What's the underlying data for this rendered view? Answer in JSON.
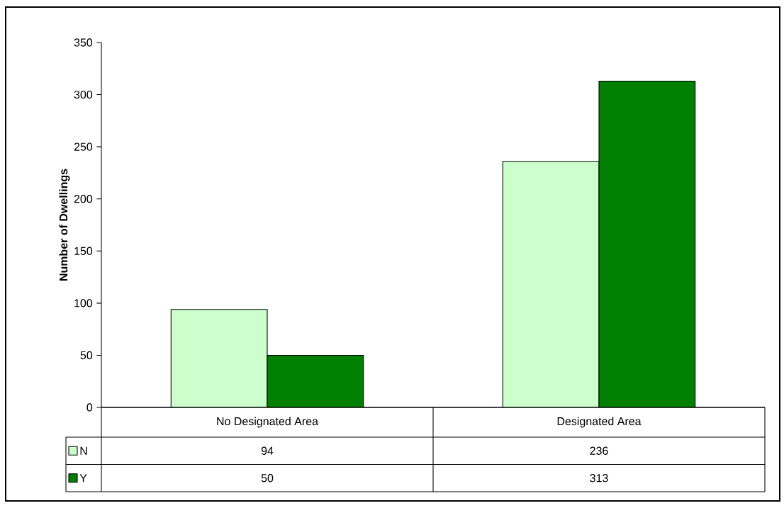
{
  "chart_data": {
    "type": "bar",
    "ylabel": "Number of Dwellings",
    "categories": [
      "No Designated Area",
      "Designated Area"
    ],
    "series": [
      {
        "name": "N",
        "color": "#ccffcc",
        "values": [
          94,
          236
        ]
      },
      {
        "name": "Y",
        "color": "#008000",
        "values": [
          50,
          313
        ]
      }
    ],
    "ylim": [
      0,
      350
    ],
    "yticks": [
      0,
      50,
      100,
      150,
      200,
      250,
      300,
      350
    ],
    "data_labels": true,
    "legend": "bottom left",
    "grid": false
  }
}
